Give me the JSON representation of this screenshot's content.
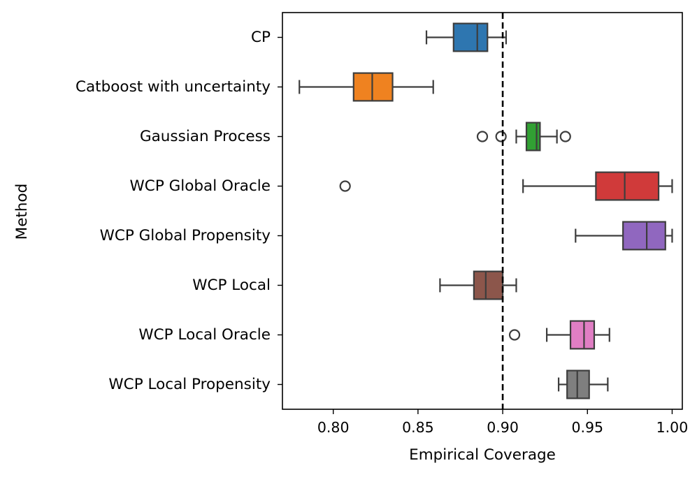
{
  "chart_data": {
    "type": "boxplot",
    "orientation": "horizontal",
    "xlabel": "Empirical Coverage",
    "ylabel": "Method",
    "xlim": [
      0.77,
      1.006
    ],
    "xticks": [
      {
        "value": 0.8,
        "label": "0.80"
      },
      {
        "value": 0.85,
        "label": "0.85"
      },
      {
        "value": 0.9,
        "label": "0.90"
      },
      {
        "value": 0.95,
        "label": "0.95"
      },
      {
        "value": 1.0,
        "label": "1.00"
      }
    ],
    "reference_line": {
      "value": 0.9,
      "style": "dashed",
      "color": "#000000"
    },
    "grid": false,
    "box_edge_color": "#3d3d3d",
    "categories": [
      {
        "label": "CP",
        "color": "#2e76b0",
        "whisker_low": 0.855,
        "q1": 0.871,
        "median": 0.885,
        "q3": 0.891,
        "whisker_high": 0.902,
        "outliers": []
      },
      {
        "label": "Catboost with uncertainty",
        "color": "#ef8220",
        "whisker_low": 0.78,
        "q1": 0.812,
        "median": 0.823,
        "q3": 0.835,
        "whisker_high": 0.859,
        "outliers": []
      },
      {
        "label": "Gaussian Process",
        "color": "#31a033",
        "whisker_low": 0.908,
        "q1": 0.914,
        "median": 0.92,
        "q3": 0.922,
        "whisker_high": 0.932,
        "outliers": [
          0.888,
          0.899,
          0.937
        ]
      },
      {
        "label": "WCP Global Oracle",
        "color": "#d03a3a",
        "whisker_low": 0.912,
        "q1": 0.955,
        "median": 0.972,
        "q3": 0.992,
        "whisker_high": 1.0,
        "outliers": [
          0.807
        ]
      },
      {
        "label": "WCP Global Propensity",
        "color": "#9067bf",
        "whisker_low": 0.943,
        "q1": 0.971,
        "median": 0.985,
        "q3": 0.996,
        "whisker_high": 1.0,
        "outliers": []
      },
      {
        "label": "WCP Local",
        "color": "#8c564b",
        "whisker_low": 0.863,
        "q1": 0.883,
        "median": 0.89,
        "q3": 0.9,
        "whisker_high": 0.908,
        "outliers": []
      },
      {
        "label": "WCP Local Oracle",
        "color": "#e07ec4",
        "whisker_low": 0.926,
        "q1": 0.94,
        "median": 0.948,
        "q3": 0.954,
        "whisker_high": 0.963,
        "outliers": [
          0.907
        ]
      },
      {
        "label": "WCP Local Propensity",
        "color": "#7f7f7f",
        "whisker_low": 0.933,
        "q1": 0.938,
        "median": 0.944,
        "q3": 0.951,
        "whisker_high": 0.962,
        "outliers": []
      }
    ]
  }
}
